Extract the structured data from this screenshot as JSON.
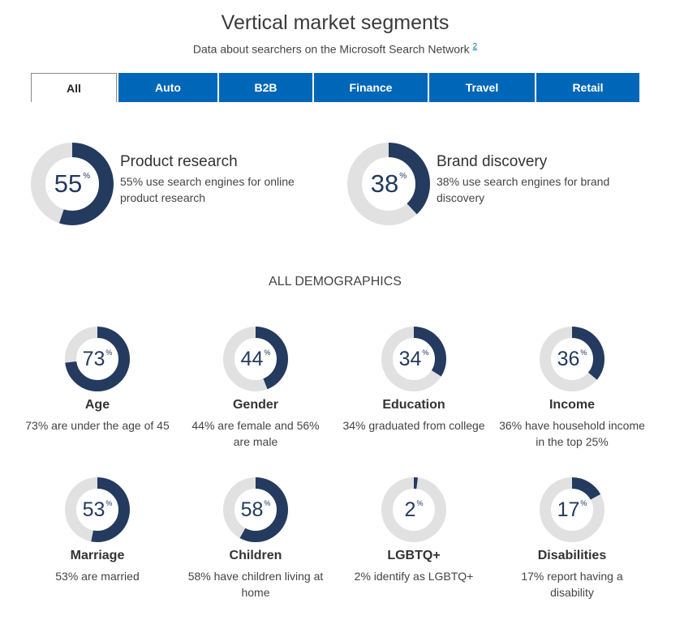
{
  "header": {
    "title": "Vertical market segments",
    "subtitle": "Data about searchers on the Microsoft Search Network",
    "footnote": "2"
  },
  "tabs": [
    {
      "label": "All",
      "active": true
    },
    {
      "label": "Auto",
      "active": false
    },
    {
      "label": "B2B",
      "active": false
    },
    {
      "label": "Finance",
      "active": false
    },
    {
      "label": "Travel",
      "active": false
    },
    {
      "label": "Retail",
      "active": false
    }
  ],
  "highlights": [
    {
      "value": 55,
      "value_text": "55",
      "unit": "%",
      "title": "Product research",
      "desc": "55% use search engines for online product research"
    },
    {
      "value": 38,
      "value_text": "38",
      "unit": "%",
      "title": "Brand discovery",
      "desc": "38% use search engines for brand discovery"
    }
  ],
  "demographics": {
    "heading": "ALL DEMOGRAPHICS",
    "items": [
      {
        "value": 73,
        "value_text": "73",
        "unit": "%",
        "title": "Age",
        "desc": "73% are under the age of 45"
      },
      {
        "value": 44,
        "value_text": "44",
        "unit": "%",
        "title": "Gender",
        "desc": "44% are female and 56% are male"
      },
      {
        "value": 34,
        "value_text": "34",
        "unit": "%",
        "title": "Education",
        "desc": "34% graduated from college"
      },
      {
        "value": 36,
        "value_text": "36",
        "unit": "%",
        "title": "Income",
        "desc": "36% have household income in the top 25%"
      },
      {
        "value": 53,
        "value_text": "53",
        "unit": "%",
        "title": "Marriage",
        "desc": "53% are married"
      },
      {
        "value": 58,
        "value_text": "58",
        "unit": "%",
        "title": "Children",
        "desc": "58% have children living at home"
      },
      {
        "value": 2,
        "value_text": "2",
        "unit": "%",
        "title": "LGBTQ+",
        "desc": "2% identify as LGBTQ+"
      },
      {
        "value": 17,
        "value_text": "17",
        "unit": "%",
        "title": "Disabilities",
        "desc": "17% report having a disability"
      }
    ]
  },
  "colors": {
    "accent": "#0067b8",
    "ring_fill": "#243a5e",
    "ring_track": "#e1e1e1"
  }
}
